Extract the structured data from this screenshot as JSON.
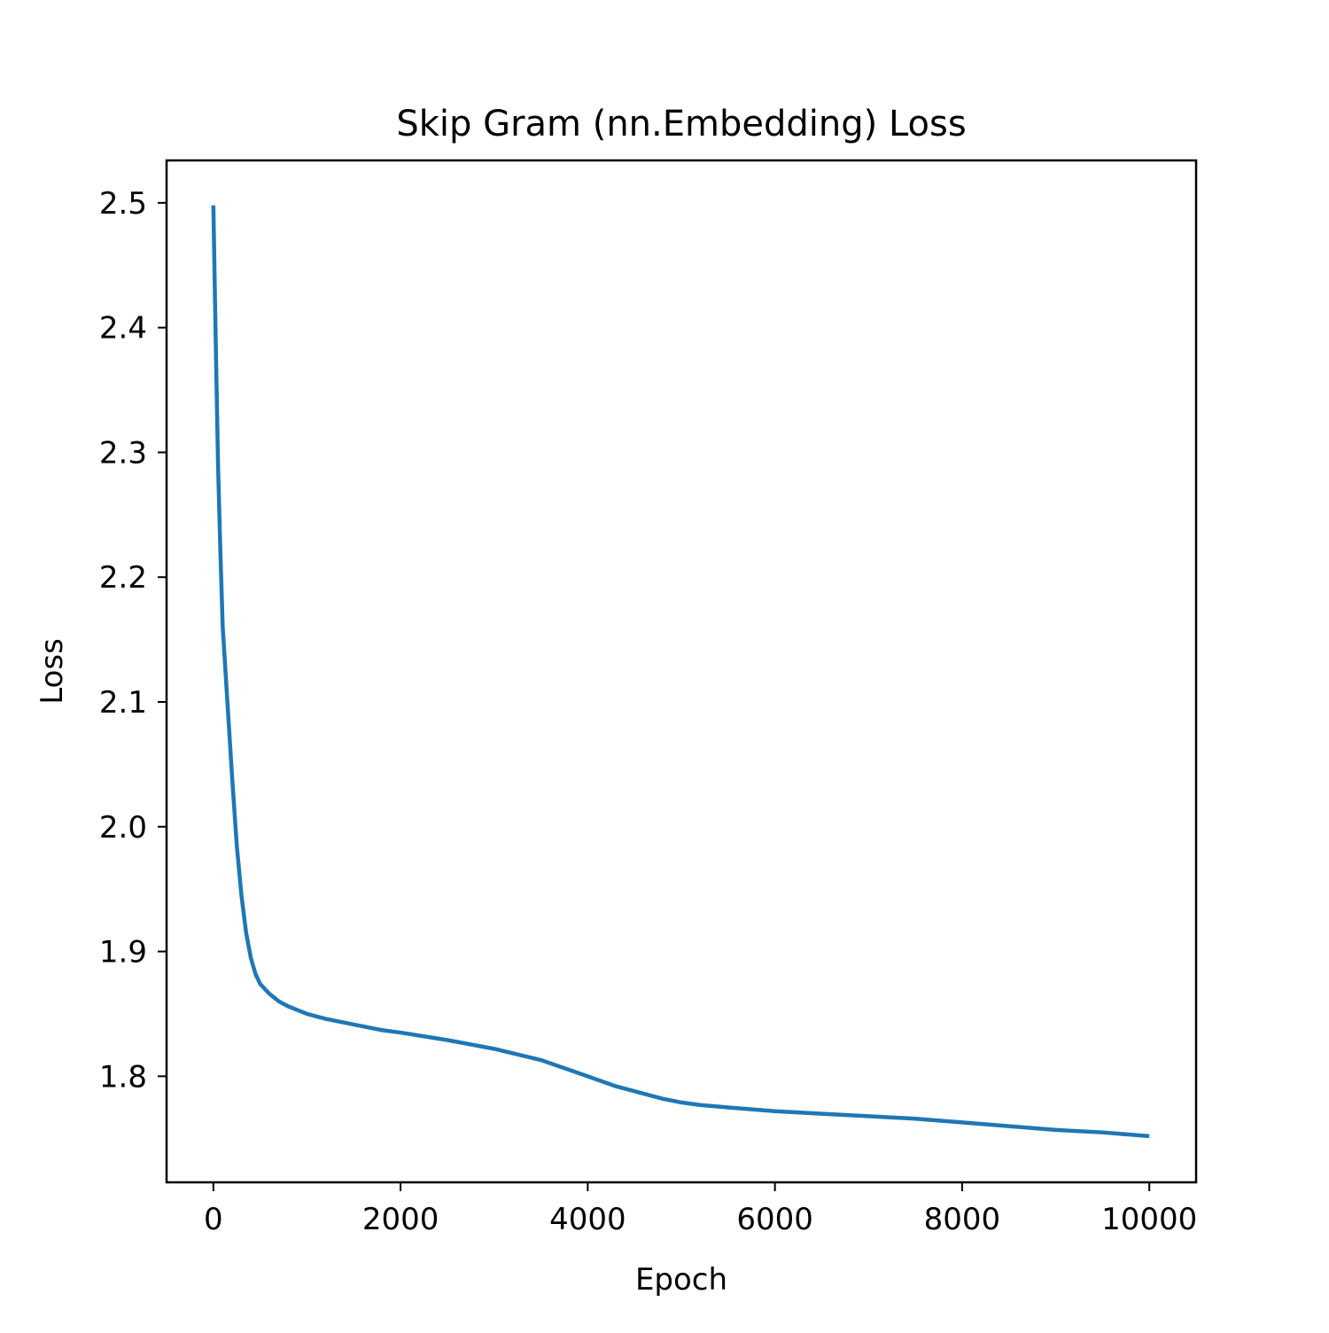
{
  "chart_data": {
    "type": "line",
    "title": "Skip Gram (nn.Embedding) Loss",
    "xlabel": "Epoch",
    "ylabel": "Loss",
    "xlim": [
      -500,
      10500
    ],
    "ylim": [
      1.715,
      2.534
    ],
    "xticks": [
      0,
      2000,
      4000,
      6000,
      8000,
      10000
    ],
    "xtick_labels": [
      "0",
      "2000",
      "4000",
      "6000",
      "8000",
      "10000"
    ],
    "yticks": [
      1.8,
      1.9,
      2.0,
      2.1,
      2.2,
      2.3,
      2.4,
      2.5
    ],
    "ytick_labels": [
      "1.8",
      "1.9",
      "2.0",
      "2.1",
      "2.2",
      "2.3",
      "2.4",
      "2.5"
    ],
    "grid": false,
    "series": [
      {
        "color": "#1f77b4",
        "x": [
          0,
          25,
          50,
          75,
          100,
          150,
          200,
          250,
          300,
          350,
          400,
          450,
          500,
          600,
          700,
          800,
          900,
          1000,
          1200,
          1400,
          1600,
          1800,
          2000,
          2500,
          3000,
          3500,
          4000,
          4300,
          4600,
          4800,
          5000,
          5200,
          5500,
          6000,
          6500,
          7000,
          7500,
          8000,
          8500,
          9000,
          9500,
          10000
        ],
        "y": [
          2.498,
          2.39,
          2.29,
          2.22,
          2.16,
          2.1,
          2.04,
          1.985,
          1.945,
          1.915,
          1.895,
          1.882,
          1.874,
          1.866,
          1.86,
          1.856,
          1.853,
          1.85,
          1.846,
          1.843,
          1.84,
          1.837,
          1.835,
          1.829,
          1.822,
          1.813,
          1.8,
          1.792,
          1.786,
          1.782,
          1.779,
          1.777,
          1.775,
          1.772,
          1.77,
          1.768,
          1.766,
          1.763,
          1.76,
          1.757,
          1.755,
          1.752
        ]
      }
    ]
  }
}
